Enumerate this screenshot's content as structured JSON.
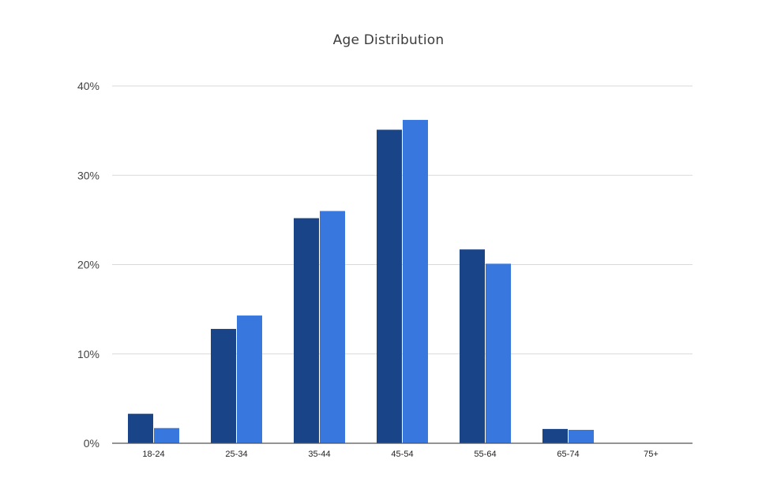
{
  "chart_data": {
    "type": "bar",
    "title": "Age Distribution",
    "xlabel": "",
    "ylabel": "",
    "categories": [
      "18-24",
      "25-34",
      "35-44",
      "45-54",
      "55-64",
      "65-74",
      "75+"
    ],
    "series": [
      {
        "values": [
          3.3,
          12.8,
          25.2,
          35.1,
          21.7,
          1.6,
          0
        ],
        "color": "#1a4488"
      },
      {
        "values": [
          1.7,
          14.3,
          26.0,
          36.2,
          20.1,
          1.5,
          0
        ],
        "color": "#3878de"
      }
    ],
    "ylim": [
      0,
      40
    ],
    "yticks": [
      0,
      10,
      20,
      30,
      40
    ],
    "ytick_labels": [
      "0%",
      "10%",
      "20%",
      "30%",
      "40%"
    ],
    "grid": true,
    "legend": "none"
  },
  "colors": {
    "gridline": "#d9d9d9",
    "baseline": "#555555"
  }
}
